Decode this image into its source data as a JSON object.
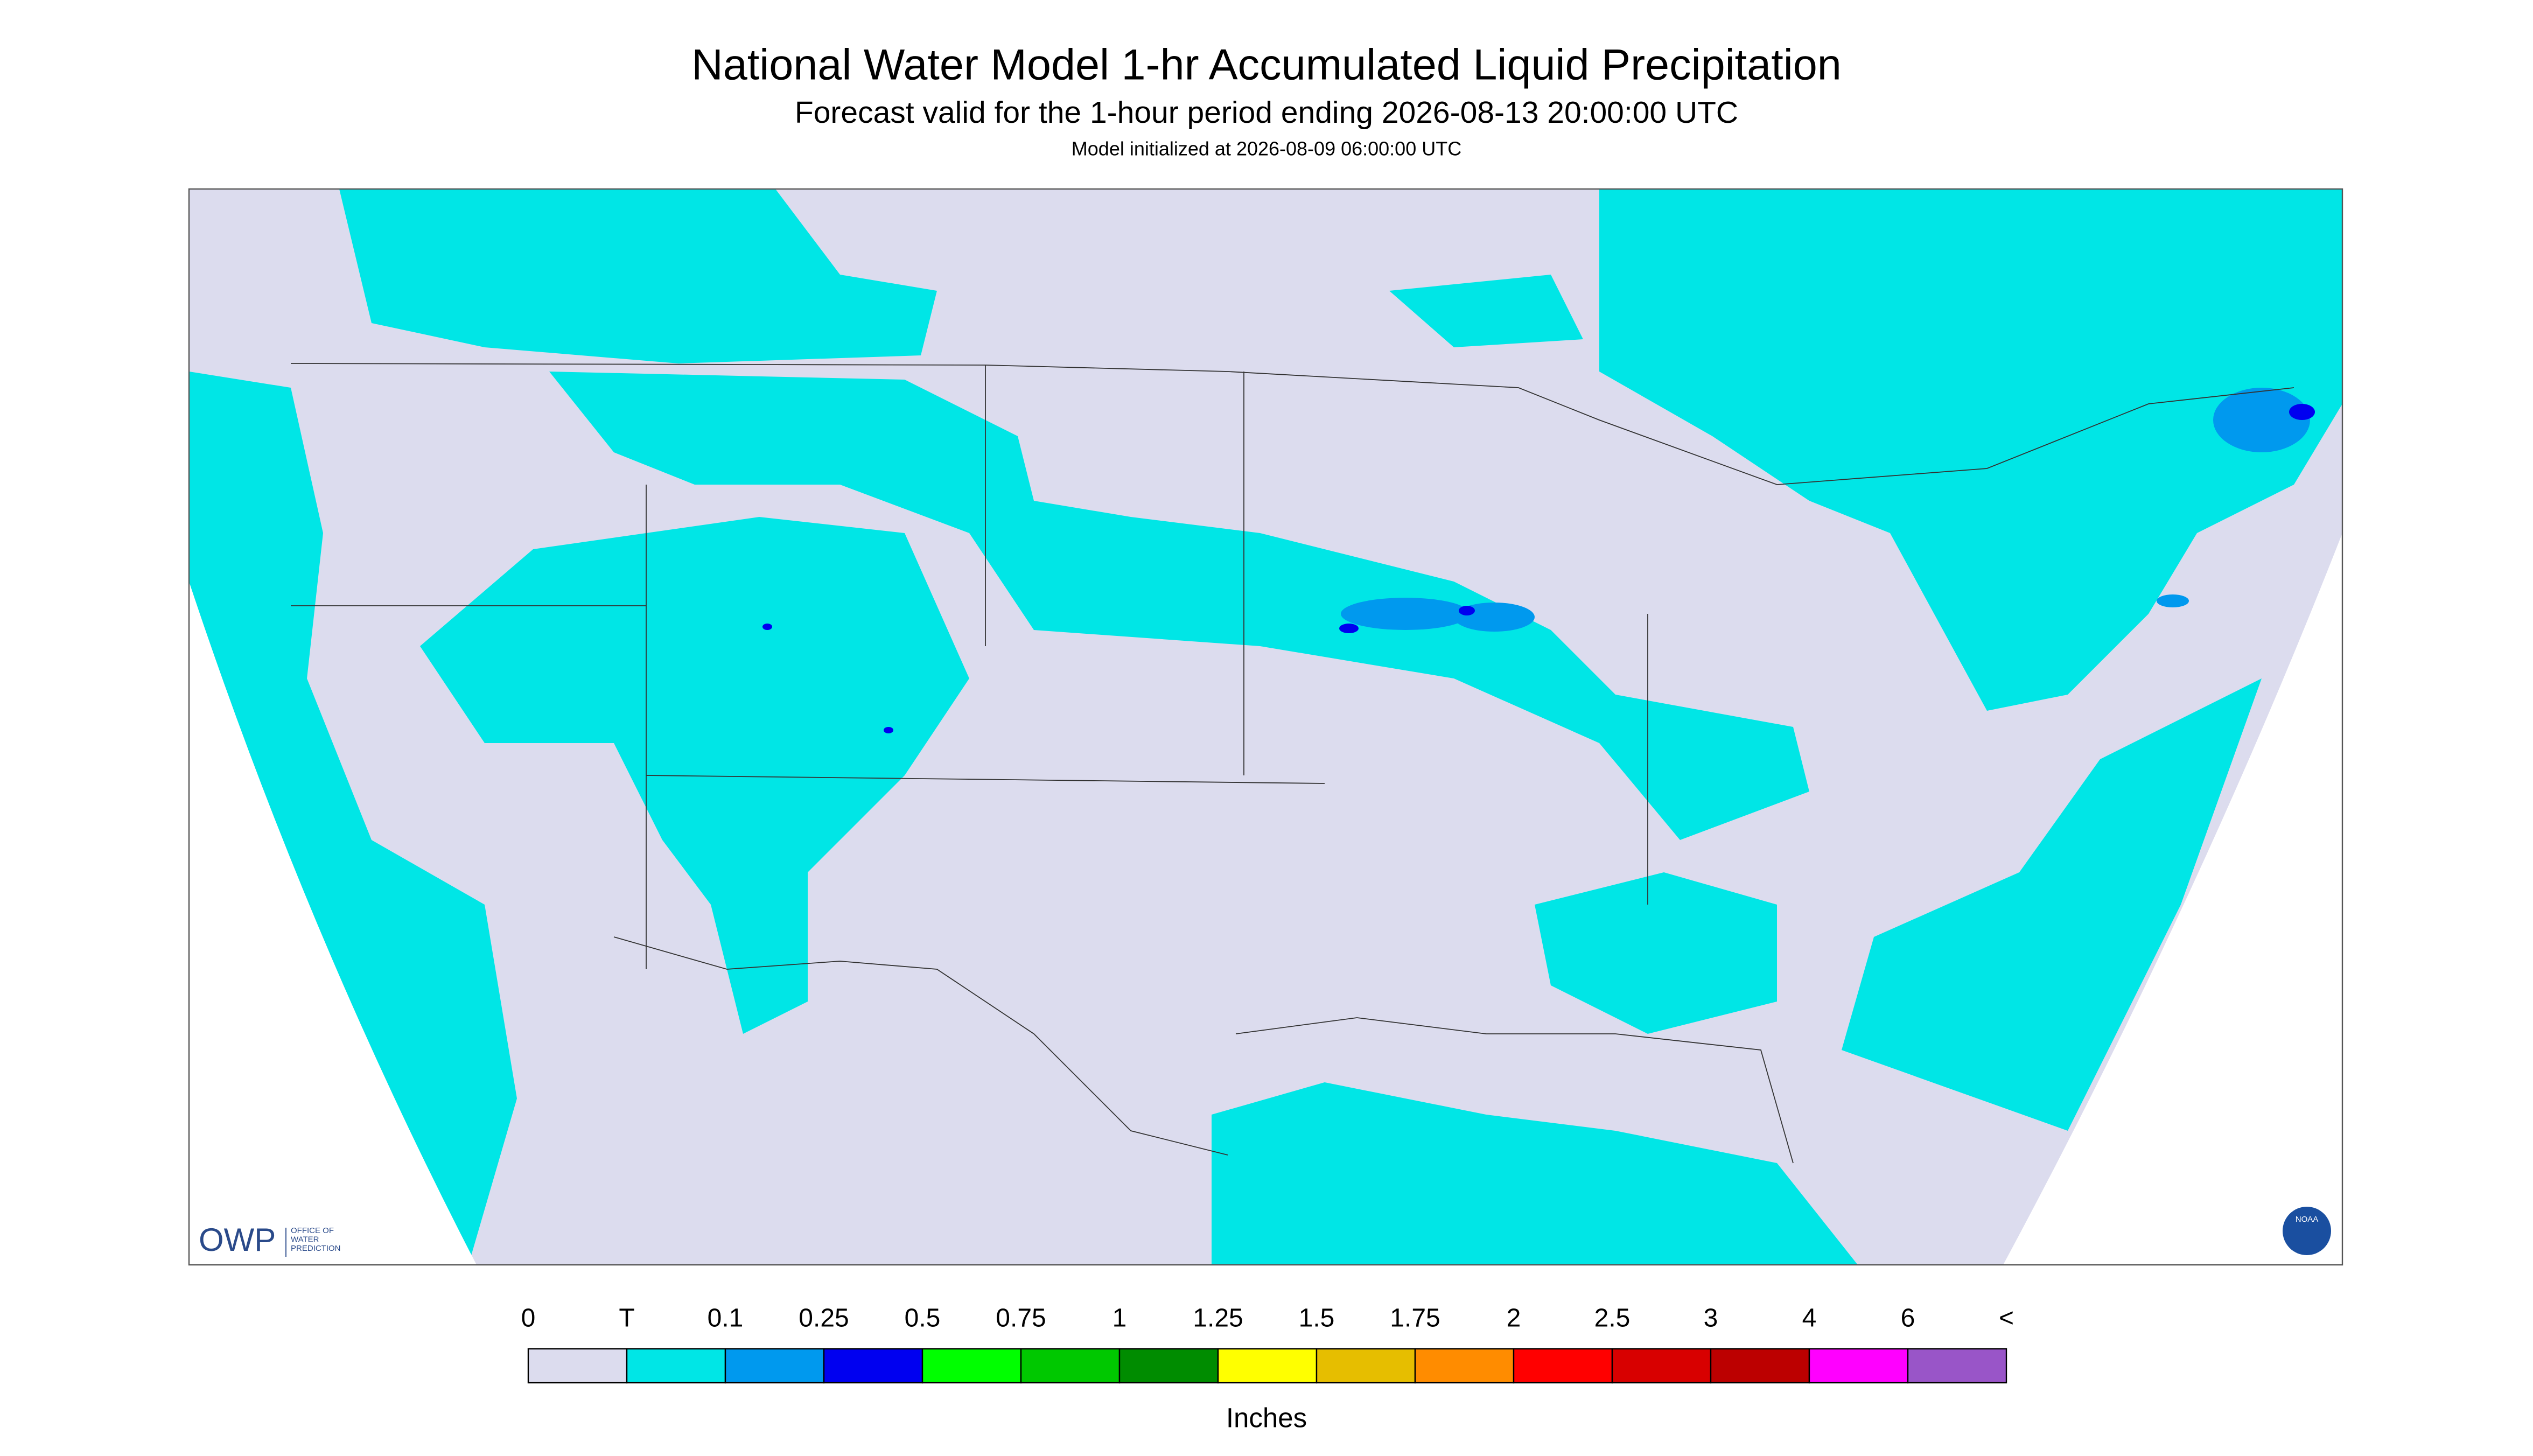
{
  "header": {
    "title": "National Water Model 1-hr Accumulated Liquid Precipitation",
    "subtitle": "Forecast valid for the 1-hour period ending 2026-08-13 20:00:00 UTC",
    "note": "Model initialized at 2026-08-09 06:00:00 UTC"
  },
  "legend": {
    "labels": [
      "0",
      "T",
      "0.1",
      "0.25",
      "0.5",
      "0.75",
      "1",
      "1.25",
      "1.5",
      "1.75",
      "2",
      "2.5",
      "3",
      "4",
      "6",
      "<"
    ],
    "colors": [
      "#dcdcee",
      "#00e6e6",
      "#0099ee",
      "#0000f0",
      "#00ff00",
      "#00c800",
      "#008c00",
      "#ffff00",
      "#e6be00",
      "#ff8c00",
      "#ff0000",
      "#d80000",
      "#bc0000",
      "#ff00ff",
      "#9955c8"
    ],
    "unit": "Inches"
  },
  "logos": {
    "owp": "OWP",
    "owp_lines": [
      "OFFICE OF",
      "WATER",
      "PREDICTION"
    ],
    "noaa": "NOAA"
  }
}
